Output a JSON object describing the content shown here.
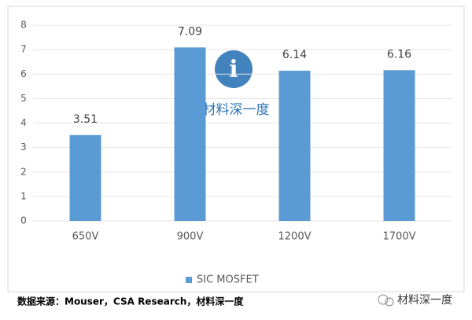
{
  "chart_data": {
    "type": "bar",
    "categories": [
      "650V",
      "900V",
      "1200V",
      "1700V"
    ],
    "series": [
      {
        "name": "SIC MOSFET",
        "color": "#5b9bd5",
        "values": [
          3.51,
          7.09,
          6.14,
          6.16
        ]
      }
    ],
    "ylim": [
      0,
      8
    ],
    "yticks": [
      0,
      1,
      2,
      3,
      4,
      5,
      6,
      7,
      8
    ],
    "grid": true,
    "legend": "bottom"
  },
  "source": "数据来源：Mouser，CSA Research，材料深一度",
  "watermark": {
    "logo_text": "材料深一度",
    "corner_text": "材料深一度"
  }
}
